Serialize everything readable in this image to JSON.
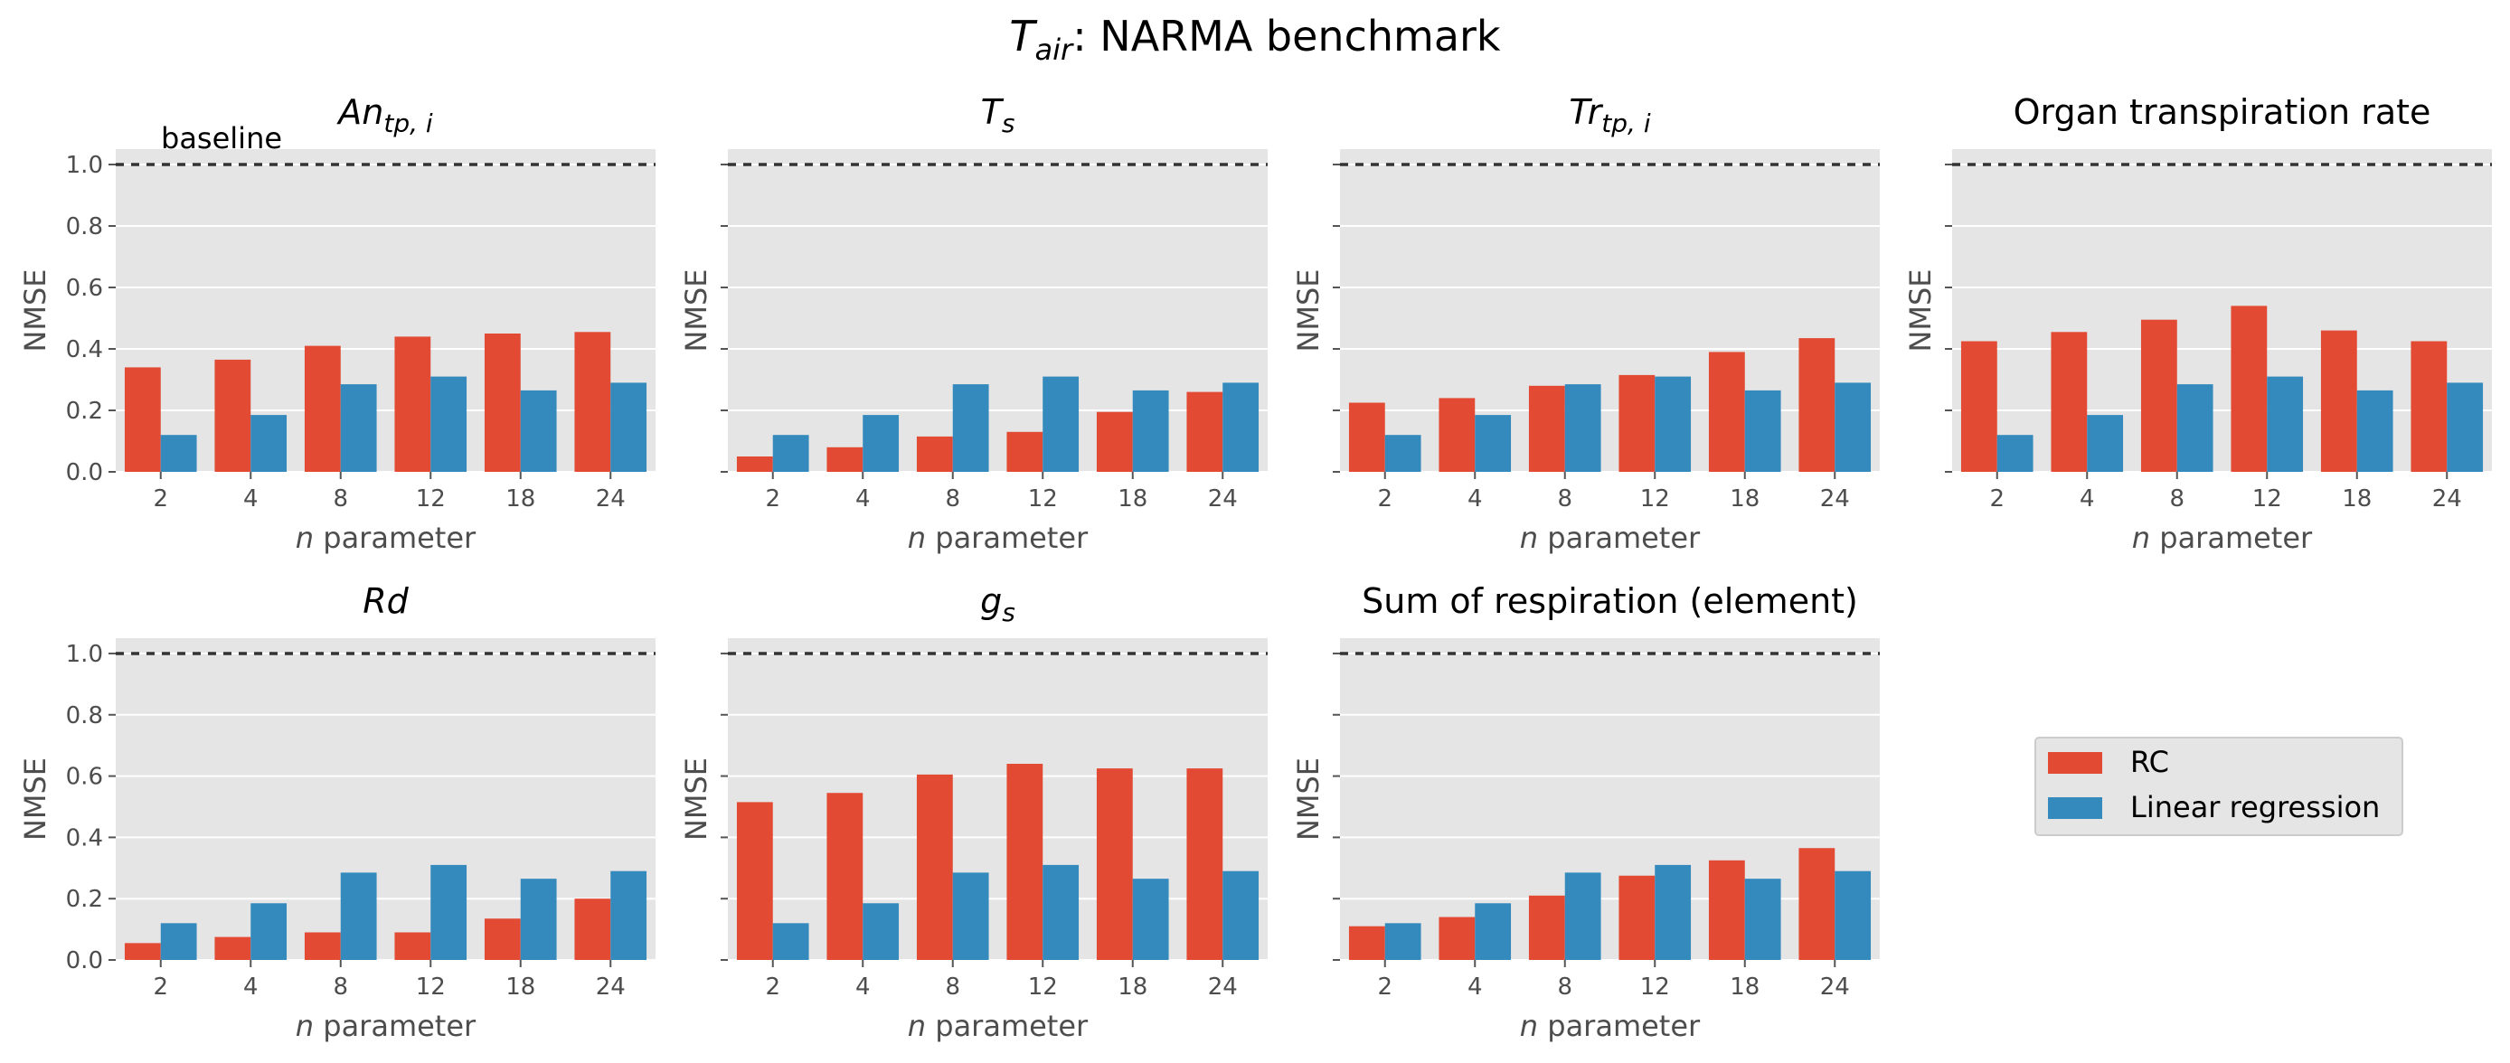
{
  "figure": {
    "title_main": "T",
    "title_sub": "air",
    "title_rest": ": NARMA benchmark"
  },
  "chart_data": {
    "type": "bar",
    "categories": [
      "2",
      "4",
      "8",
      "12",
      "18",
      "24"
    ],
    "ylim": [
      0,
      1.05
    ],
    "yticks": [
      "0.0",
      "0.2",
      "0.4",
      "0.6",
      "0.8",
      "1.0"
    ],
    "ylabel": "NMSE",
    "xlabel_var": "n",
    "xlabel_rest": " parameter",
    "baseline_value": 1.0,
    "baseline_label": "baseline",
    "grid": true,
    "legend_position": "right",
    "series_names": [
      "RC",
      "Linear regression"
    ],
    "colors": {
      "RC": "#E24A33",
      "Linear regression": "#348ABD",
      "background": "#E5E5E5",
      "grid": "#FFFFFF",
      "baseline": "#333333"
    },
    "panels": [
      {
        "title_main": "An",
        "title_sub": "tp, i",
        "rc": [
          0.34,
          0.365,
          0.41,
          0.44,
          0.45,
          0.455
        ],
        "lr": [
          0.12,
          0.185,
          0.285,
          0.31,
          0.265,
          0.29
        ]
      },
      {
        "title_main": "T",
        "title_sub": "s",
        "rc": [
          0.05,
          0.08,
          0.115,
          0.13,
          0.195,
          0.26
        ],
        "lr": [
          0.12,
          0.185,
          0.285,
          0.31,
          0.265,
          0.29
        ]
      },
      {
        "title_main": "Tr",
        "title_sub": "tp, i",
        "rc": [
          0.225,
          0.24,
          0.28,
          0.315,
          0.39,
          0.435
        ],
        "lr": [
          0.12,
          0.185,
          0.285,
          0.31,
          0.265,
          0.29
        ]
      },
      {
        "title_main": "Organ transpiration rate",
        "title_sub": "",
        "rc": [
          0.425,
          0.455,
          0.495,
          0.54,
          0.46,
          0.425
        ],
        "lr": [
          0.12,
          0.185,
          0.285,
          0.31,
          0.265,
          0.29
        ]
      },
      {
        "title_main": "Rd",
        "title_sub": "",
        "rc": [
          0.055,
          0.075,
          0.09,
          0.09,
          0.135,
          0.2
        ],
        "lr": [
          0.12,
          0.185,
          0.285,
          0.31,
          0.265,
          0.29
        ]
      },
      {
        "title_main": "g",
        "title_sub": "s",
        "rc": [
          0.515,
          0.545,
          0.605,
          0.64,
          0.625,
          0.625
        ],
        "lr": [
          0.12,
          0.185,
          0.285,
          0.31,
          0.265,
          0.29
        ]
      },
      {
        "title_main": "Sum of respiration (element)",
        "title_sub": "",
        "rc": [
          0.11,
          0.14,
          0.21,
          0.275,
          0.325,
          0.365
        ],
        "lr": [
          0.12,
          0.185,
          0.285,
          0.31,
          0.265,
          0.29
        ]
      }
    ]
  }
}
